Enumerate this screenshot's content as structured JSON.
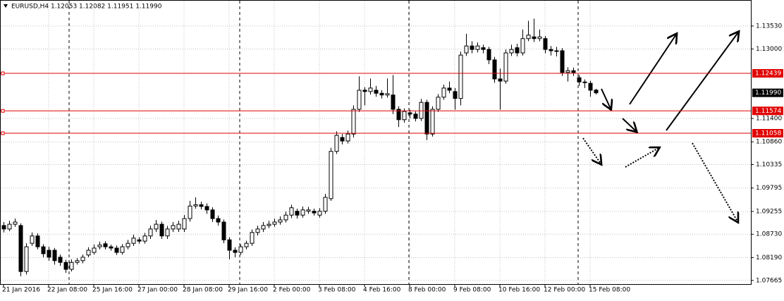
{
  "chart_data": {
    "type": "candlestick",
    "title": "EURUSD,H4  1.12053 1.12082 1.11951 1.11990",
    "categories": [
      "21 Jan 2016",
      null,
      null,
      null,
      null,
      null,
      null,
      null,
      "22 Jan 08:00",
      null,
      null,
      null,
      null,
      null,
      null,
      null,
      "25 Jan 16:00",
      null,
      null,
      null,
      null,
      null,
      null,
      null,
      "27 Jan 00:00",
      null,
      null,
      null,
      null,
      null,
      null,
      null,
      "28 Jan 08:00",
      null,
      null,
      null,
      null,
      null,
      null,
      null,
      "29 Jan 16:00",
      null,
      null,
      null,
      null,
      null,
      null,
      null,
      "2 Feb 00:00",
      null,
      null,
      null,
      null,
      null,
      null,
      null,
      "3 Feb 08:00",
      null,
      null,
      null,
      null,
      null,
      null,
      null,
      "4 Feb 16:00",
      null,
      null,
      null,
      null,
      null,
      null,
      null,
      "8 Feb 00:00",
      null,
      null,
      null,
      null,
      null,
      null,
      null,
      "9 Feb 08:00",
      null,
      null,
      null,
      null,
      null,
      null,
      null,
      "10 Feb 16:00",
      null,
      null,
      null,
      null,
      null,
      null,
      null,
      "12 Feb 00:00",
      null,
      null,
      null,
      null,
      null,
      null,
      null,
      "15 Feb 08:00",
      null
    ],
    "open": [
      1.0893,
      1.0885,
      1.0896,
      1.0893,
      1.0787,
      1.0852,
      1.0869,
      1.0844,
      1.0836,
      1.0836,
      1.082,
      1.0808,
      1.0792,
      1.0808,
      1.0812,
      1.0825,
      1.0831,
      1.0844,
      1.0851,
      1.0844,
      1.0841,
      1.0831,
      1.0844,
      1.0852,
      1.086,
      1.0857,
      1.0869,
      1.0885,
      1.0896,
      1.0869,
      1.0885,
      1.0885,
      1.0885,
      1.0909,
      1.0938,
      1.0941,
      1.0937,
      1.0929,
      1.0909,
      1.0901,
      1.086,
      1.0836,
      1.0831,
      1.0844,
      1.0852,
      1.0877,
      1.0885,
      1.0893,
      1.0896,
      1.0901,
      1.0906,
      1.0917,
      1.0926,
      1.0917,
      1.0926,
      1.0926,
      1.0917,
      1.0926,
      1.0955,
      1.1064,
      1.1096,
      1.1088,
      1.1104,
      1.1161,
      1.1205,
      1.1202,
      1.1205,
      1.1198,
      1.1194,
      1.1194,
      1.1161,
      1.1137,
      1.1153,
      1.115,
      1.114,
      1.1177,
      1.1104,
      1.1161,
      1.1189,
      1.121,
      1.1202,
      1.1186,
      1.1291,
      1.1307,
      1.1299,
      1.1303,
      1.1299,
      1.1275,
      1.1231,
      1.1226,
      1.1291,
      1.1303,
      1.1291,
      1.1324,
      1.1328,
      1.1324,
      1.1324,
      1.1299,
      1.1296,
      1.1296,
      1.1246,
      1.125,
      1.1234,
      1.1224,
      1.1221,
      1.12053
    ],
    "high": [
      1.0901,
      1.0904,
      1.0909,
      1.0898,
      1.0852,
      1.0877,
      1.0875,
      1.085,
      1.0844,
      1.0841,
      1.0826,
      1.0814,
      1.0815,
      1.0818,
      1.0826,
      1.0843,
      1.0849,
      1.0856,
      1.0857,
      1.0849,
      1.0847,
      1.085,
      1.086,
      1.0872,
      1.0866,
      1.0876,
      1.0893,
      1.0906,
      1.0902,
      1.0892,
      1.0901,
      1.0904,
      1.0917,
      1.095,
      1.0958,
      1.0948,
      1.0944,
      1.0935,
      1.0916,
      1.0907,
      1.0866,
      1.0843,
      1.085,
      1.0858,
      1.0884,
      1.0893,
      1.0901,
      1.0904,
      1.0909,
      1.0914,
      1.0925,
      1.0941,
      1.0932,
      1.0937,
      1.0936,
      1.0932,
      1.0933,
      1.0966,
      1.1072,
      1.111,
      1.1104,
      1.1112,
      1.117,
      1.1237,
      1.1212,
      1.1232,
      1.1215,
      1.1205,
      1.1232,
      1.124,
      1.1168,
      1.1163,
      1.116,
      1.1156,
      1.1185,
      1.1183,
      1.1168,
      1.1196,
      1.1218,
      1.1225,
      1.121,
      1.1294,
      1.1335,
      1.1318,
      1.1315,
      1.131,
      1.1305,
      1.1282,
      1.1255,
      1.1299,
      1.131,
      1.1312,
      1.1345,
      1.1365,
      1.137,
      1.1345,
      1.133,
      1.1307,
      1.1305,
      1.1302,
      1.1258,
      1.1257,
      1.124,
      1.123,
      1.1227,
      1.12082
    ],
    "low": [
      1.0877,
      1.088,
      1.089,
      1.0776,
      1.078,
      1.0846,
      1.0838,
      1.082,
      1.0812,
      1.0803,
      1.08,
      1.0784,
      1.0787,
      1.0803,
      1.0806,
      1.082,
      1.0826,
      1.0838,
      1.0838,
      1.0835,
      1.0825,
      1.0826,
      1.0838,
      1.0846,
      1.0851,
      1.0851,
      1.0862,
      1.0878,
      1.0862,
      1.0862,
      1.0878,
      1.0878,
      1.0878,
      1.0902,
      1.0932,
      1.093,
      1.092,
      1.0901,
      1.0893,
      1.0852,
      1.0815,
      1.082,
      1.0825,
      1.0838,
      1.0846,
      1.087,
      1.0878,
      1.0887,
      1.089,
      1.0895,
      1.09,
      1.091,
      1.0909,
      1.0911,
      1.092,
      1.0916,
      1.0911,
      1.092,
      1.095,
      1.1058,
      1.108,
      1.1082,
      1.1096,
      1.1155,
      1.117,
      1.1195,
      1.119,
      1.1186,
      1.1188,
      1.115,
      1.112,
      1.113,
      1.114,
      1.1133,
      1.1134,
      1.109,
      1.1098,
      1.1155,
      1.1183,
      1.1198,
      1.116,
      1.117,
      1.1284,
      1.129,
      1.1292,
      1.129,
      1.1265,
      1.1222,
      1.116,
      1.122,
      1.1284,
      1.1283,
      1.1285,
      1.1318,
      1.1316,
      1.1318,
      1.129,
      1.1285,
      1.1283,
      1.1238,
      1.1225,
      1.1238,
      1.1215,
      1.121,
      1.119,
      1.11951
    ],
    "close": [
      1.0885,
      1.0896,
      1.0901,
      1.0787,
      1.0844,
      1.0869,
      1.0844,
      1.0828,
      1.082,
      1.0812,
      1.0808,
      1.0792,
      1.0808,
      1.0812,
      1.082,
      1.0836,
      1.0841,
      1.0848,
      1.0844,
      1.0841,
      1.0831,
      1.0844,
      1.0852,
      1.0864,
      1.0857,
      1.0869,
      1.0885,
      1.0896,
      1.0869,
      1.0885,
      1.0893,
      1.0896,
      1.0909,
      1.0938,
      1.0941,
      1.0937,
      1.0929,
      1.0909,
      1.0901,
      1.086,
      1.0836,
      1.0831,
      1.0844,
      1.0852,
      1.0877,
      1.0885,
      1.0893,
      1.0896,
      1.0901,
      1.0906,
      1.0917,
      1.0934,
      1.0917,
      1.0929,
      1.0929,
      1.0922,
      1.0926,
      1.0958,
      1.1064,
      1.1101,
      1.1088,
      1.1104,
      1.1161,
      1.1205,
      1.1202,
      1.121,
      1.1198,
      1.1194,
      1.1197,
      1.1161,
      1.1137,
      1.1156,
      1.115,
      1.114,
      1.1177,
      1.1104,
      1.1161,
      1.1189,
      1.121,
      1.1205,
      1.1186,
      1.1286,
      1.1307,
      1.1299,
      1.1307,
      1.1299,
      1.1275,
      1.1231,
      1.1226,
      1.1291,
      1.1299,
      1.1291,
      1.1324,
      1.1332,
      1.1324,
      1.1328,
      1.1299,
      1.1296,
      1.1295,
      1.1246,
      1.125,
      1.1246,
      1.1224,
      1.1223,
      1.1205,
      1.1199
    ],
    "ylim": [
      1.0758,
      1.1413
    ],
    "yticks": [
      {
        "value": 1.1353,
        "label": "1.13530"
      },
      {
        "value": 1.13,
        "label": "1.13000"
      },
      {
        "value": 1.114,
        "label": "1.11400"
      },
      {
        "value": 1.1086,
        "label": "1.10860"
      },
      {
        "value": 1.10335,
        "label": "1.10335"
      },
      {
        "value": 1.09795,
        "label": "1.09795"
      },
      {
        "value": 1.09255,
        "label": "1.09255"
      },
      {
        "value": 1.0873,
        "label": "1.08730"
      },
      {
        "value": 1.0819,
        "label": "1.08190"
      },
      {
        "value": 1.07665,
        "label": "1.07665"
      }
    ],
    "levels": [
      1.12439,
      1.11574,
      1.11058
    ],
    "level_color": "#e00000",
    "current_price": {
      "value": 1.1199,
      "label": "1.11990"
    },
    "grid": true
  }
}
